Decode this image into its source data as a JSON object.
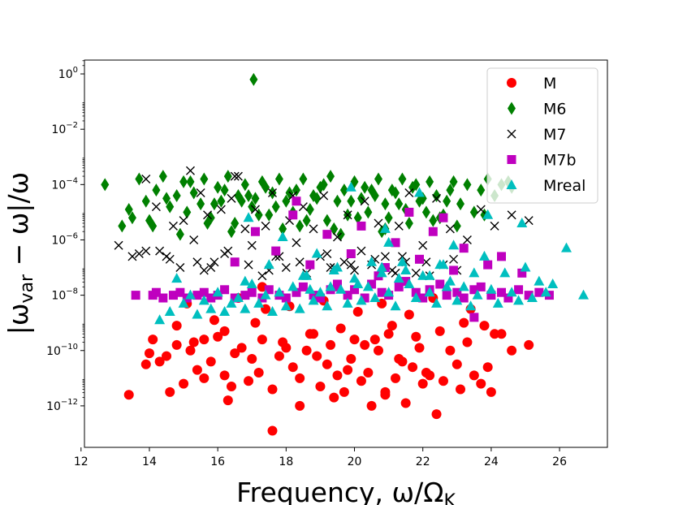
{
  "chart_data": {
    "type": "scatter",
    "title": "",
    "xlabel": "Frequency, ω/Ω",
    "xlabel_sub": "K",
    "ylabel": "|ω",
    "ylabel_sub": "var",
    "ylabel_rest": " − ω|/ω",
    "xlim": [
      12.1,
      27.4
    ],
    "ylim_log10": [
      -13.5,
      0.5
    ],
    "xscale": "linear",
    "yscale": "log",
    "grid": false,
    "legend_position": "upper right",
    "x_ticks": [
      12,
      14,
      16,
      18,
      20,
      22,
      24,
      26
    ],
    "y_ticks": [
      {
        "exp": 0,
        "base": "10",
        "sup": "0"
      },
      {
        "exp": -2,
        "base": "10",
        "sup": "−2"
      },
      {
        "exp": -4,
        "base": "10",
        "sup": "−4"
      },
      {
        "exp": -6,
        "base": "10",
        "sup": "−6"
      },
      {
        "exp": -8,
        "base": "10",
        "sup": "−8"
      },
      {
        "exp": -10,
        "base": "10",
        "sup": "−10"
      },
      {
        "exp": -12,
        "base": "10",
        "sup": "−12"
      }
    ],
    "series": [
      {
        "name": "M",
        "marker": "circle",
        "color": "#ff0000",
        "x": [
          13.4,
          13.9,
          14.0,
          14.1,
          14.3,
          14.5,
          14.6,
          14.8,
          15.0,
          15.2,
          15.3,
          15.4,
          15.6,
          15.8,
          16.0,
          16.2,
          16.4,
          16.5,
          16.7,
          16.9,
          17.0,
          17.2,
          17.3,
          17.6,
          17.8,
          18.0,
          18.2,
          18.4,
          18.6,
          18.8,
          19.0,
          19.2,
          19.3,
          19.5,
          19.7,
          19.9,
          20.0,
          20.2,
          20.4,
          20.5,
          20.7,
          20.9,
          21.0,
          21.2,
          21.4,
          21.5,
          21.7,
          21.9,
          22.0,
          22.2,
          22.4,
          22.6,
          22.8,
          23.0,
          23.1,
          23.3,
          23.5,
          23.7,
          23.9,
          24.0,
          24.3,
          24.6,
          25.1,
          14.8,
          15.6,
          16.2,
          17.1,
          17.9,
          18.7,
          19.6,
          20.3,
          21.1,
          21.8,
          22.5,
          23.2,
          24.1,
          15.1,
          16.6,
          17.4,
          18.1,
          19.1,
          20.1,
          20.8,
          21.6,
          22.3,
          23.4,
          17.6,
          16.3,
          18.4,
          19.4,
          20.9,
          17.3,
          15.9,
          21.3,
          22.1,
          18.9,
          19.8,
          20.6,
          23.8
        ],
        "y": [
          -11.6,
          -10.5,
          -10.1,
          -9.6,
          -10.4,
          -10.2,
          -11.5,
          -9.8,
          -11.2,
          -10.0,
          -9.7,
          -10.7,
          -11.0,
          -10.4,
          -9.5,
          -10.9,
          -11.3,
          -10.1,
          -9.9,
          -11.1,
          -10.3,
          -10.8,
          -9.6,
          -11.4,
          -10.2,
          -9.9,
          -10.6,
          -11.0,
          -10.0,
          -9.4,
          -11.3,
          -10.5,
          -9.8,
          -10.9,
          -11.5,
          -10.3,
          -9.6,
          -11.1,
          -10.8,
          -12.0,
          -10.0,
          -11.6,
          -9.4,
          -11.0,
          -10.4,
          -11.9,
          -10.6,
          -9.9,
          -11.2,
          -10.9,
          -12.3,
          -11.1,
          -10.0,
          -10.5,
          -11.4,
          -9.7,
          -10.9,
          -11.2,
          -10.6,
          -11.5,
          -9.4,
          -10.0,
          -9.8,
          -9.1,
          -9.6,
          -9.3,
          -9.0,
          -9.7,
          -9.4,
          -9.2,
          -9.8,
          -9.1,
          -9.5,
          -9.3,
          -9.0,
          -9.4,
          -8.3,
          -8.1,
          -8.5,
          -8.4,
          -8.2,
          -8.6,
          -8.3,
          -8.7,
          -8.1,
          -8.5,
          -12.9,
          -11.8,
          -12.0,
          -11.7,
          -11.5,
          -7.7,
          -8.9,
          -10.3,
          -10.8,
          -10.2,
          -10.7,
          -9.6,
          -9.1
        ]
      },
      {
        "name": "M6",
        "marker": "diamond",
        "color": "#008000",
        "x": [
          12.7,
          13.2,
          13.4,
          13.7,
          13.9,
          14.0,
          14.2,
          14.4,
          14.6,
          14.8,
          15.0,
          15.1,
          15.3,
          15.5,
          15.6,
          15.8,
          16.0,
          16.1,
          16.3,
          16.5,
          16.6,
          16.8,
          17.0,
          17.1,
          17.3,
          17.5,
          17.6,
          17.8,
          18.0,
          18.2,
          18.3,
          18.5,
          18.7,
          18.8,
          19.0,
          19.2,
          19.3,
          19.5,
          19.7,
          19.8,
          20.0,
          20.2,
          20.4,
          20.5,
          20.7,
          20.9,
          21.0,
          21.2,
          21.4,
          21.5,
          21.7,
          21.9,
          22.1,
          22.2,
          22.4,
          22.6,
          22.8,
          22.9,
          23.1,
          23.3,
          23.5,
          23.7,
          23.9,
          24.1,
          24.3,
          24.5,
          24.6,
          13.5,
          14.1,
          14.9,
          15.7,
          16.4,
          17.2,
          17.9,
          18.6,
          19.4,
          20.1,
          20.8,
          21.6,
          22.3,
          23.0,
          23.8,
          14.5,
          15.9,
          16.9,
          17.7,
          18.9,
          19.9,
          20.6,
          21.3,
          22.0,
          22.7,
          16.2,
          17.4,
          18.1,
          19.1,
          20.3,
          21.1,
          21.8,
          15.2,
          16.7,
          18.4,
          19.6,
          20.9,
          22.5,
          17.05
        ],
        "y": [
          -4.0,
          -5.5,
          -4.9,
          -3.8,
          -4.6,
          -5.3,
          -4.2,
          -3.7,
          -4.8,
          -4.4,
          -3.9,
          -5.0,
          -4.3,
          -4.7,
          -3.8,
          -5.2,
          -4.1,
          -4.6,
          -3.7,
          -5.4,
          -4.4,
          -4.0,
          -4.8,
          -4.5,
          -3.9,
          -5.1,
          -4.3,
          -3.8,
          -4.6,
          -5.0,
          -4.2,
          -3.8,
          -4.9,
          -4.4,
          -4.1,
          -5.3,
          -3.7,
          -4.6,
          -4.2,
          -5.1,
          -3.9,
          -4.5,
          -5.0,
          -4.2,
          -3.8,
          -4.7,
          -5.2,
          -4.3,
          -3.8,
          -4.9,
          -4.1,
          -4.6,
          -5.0,
          -3.9,
          -4.4,
          -5.1,
          -4.2,
          -3.9,
          -4.7,
          -4.0,
          -5.0,
          -4.2,
          -3.8,
          -4.4,
          -4.0,
          -3.9,
          -4.1,
          -5.2,
          -5.5,
          -5.8,
          -5.4,
          -5.7,
          -5.1,
          -5.6,
          -5.3,
          -5.6,
          -5.2,
          -5.7,
          -5.4,
          -5.3,
          -5.5,
          -5.1,
          -4.5,
          -4.7,
          -4.4,
          -4.8,
          -4.5,
          -4.6,
          -4.4,
          -4.7,
          -4.5,
          -4.6,
          -4.2,
          -4.1,
          -4.3,
          -4.0,
          -4.1,
          -4.2,
          -4.0,
          -3.9,
          -4.6,
          -5.5,
          -5.8,
          -5.6,
          -5.2,
          -0.2
        ]
      },
      {
        "name": "M7",
        "marker": "x",
        "color": "#000000",
        "x": [
          13.1,
          13.5,
          13.7,
          13.9,
          14.2,
          14.3,
          14.5,
          14.7,
          14.9,
          15.0,
          15.2,
          15.3,
          15.5,
          15.6,
          15.7,
          15.9,
          16.1,
          16.3,
          16.4,
          16.6,
          16.8,
          17.0,
          17.1,
          17.3,
          17.4,
          17.6,
          17.8,
          18.0,
          18.1,
          18.3,
          18.5,
          18.6,
          18.8,
          19.0,
          19.1,
          19.3,
          19.5,
          19.7,
          19.8,
          20.0,
          20.2,
          20.3,
          20.5,
          20.7,
          20.9,
          21.1,
          21.3,
          21.5,
          21.6,
          21.8,
          22.0,
          22.2,
          22.4,
          22.6,
          22.8,
          23.0,
          23.3,
          23.7,
          24.1,
          24.6,
          25.1,
          13.9,
          14.6,
          15.4,
          16.2,
          16.9,
          17.7,
          18.4,
          19.2,
          19.9,
          20.6,
          21.4,
          22.1,
          22.9,
          15.8,
          17.5,
          19.4,
          21.2,
          16.5,
          18.2
        ],
        "y": [
          -6.2,
          -6.6,
          -6.5,
          -3.8,
          -4.8,
          -6.4,
          -6.6,
          -5.5,
          -7.0,
          -5.3,
          -3.5,
          -6.0,
          -4.3,
          -7.1,
          -5.1,
          -6.8,
          -4.9,
          -6.4,
          -4.5,
          -3.7,
          -5.6,
          -6.2,
          -4.9,
          -7.3,
          -5.5,
          -4.3,
          -6.6,
          -7.0,
          -5.3,
          -6.1,
          -4.8,
          -7.2,
          -5.6,
          -6.6,
          -4.4,
          -7.0,
          -5.9,
          -6.8,
          -5.1,
          -7.1,
          -6.4,
          -4.6,
          -6.9,
          -5.4,
          -6.6,
          -7.1,
          -5.5,
          -6.8,
          -4.3,
          -7.2,
          -6.2,
          -7.3,
          -4.5,
          -6.9,
          -5.6,
          -7.1,
          -6.0,
          -4.9,
          -5.5,
          -5.1,
          -5.3,
          -6.4,
          -6.7,
          -6.8,
          -6.5,
          -6.9,
          -6.6,
          -6.8,
          -6.5,
          -6.9,
          -6.7,
          -6.6,
          -6.8,
          -6.7,
          -7.0,
          -7.1,
          -7.0,
          -7.2,
          -3.7,
          -4.4
        ]
      },
      {
        "name": "M7b",
        "marker": "square",
        "color": "#bf00bf",
        "x": [
          13.6,
          14.1,
          14.2,
          14.4,
          14.7,
          14.9,
          15.1,
          15.4,
          15.6,
          15.8,
          16.0,
          16.2,
          16.5,
          16.8,
          17.0,
          17.3,
          17.5,
          17.8,
          18.0,
          18.3,
          18.5,
          18.8,
          19.0,
          19.3,
          19.5,
          19.8,
          20.0,
          20.3,
          20.5,
          20.8,
          21.0,
          21.3,
          21.5,
          21.8,
          22.0,
          22.2,
          22.5,
          22.7,
          23.0,
          23.2,
          23.5,
          23.7,
          24.0,
          24.3,
          24.5,
          24.8,
          25.1,
          25.4,
          25.7,
          16.5,
          17.7,
          18.7,
          19.9,
          20.9,
          21.9,
          22.9,
          23.9,
          24.9,
          17.1,
          18.2,
          19.2,
          20.2,
          21.2,
          22.3,
          23.2,
          24.3,
          18.3,
          21.6,
          22.6,
          23.5,
          19.5,
          20.7
        ],
        "y": [
          -8.0,
          -8.0,
          -7.9,
          -8.1,
          -8.0,
          -7.9,
          -8.1,
          -8.0,
          -7.9,
          -8.1,
          -8.0,
          -7.8,
          -8.1,
          -8.0,
          -7.9,
          -8.1,
          -7.8,
          -8.0,
          -8.1,
          -7.9,
          -7.7,
          -8.0,
          -8.1,
          -7.8,
          -7.7,
          -8.0,
          -7.8,
          -8.1,
          -7.6,
          -7.9,
          -8.0,
          -7.7,
          -7.5,
          -7.9,
          -8.1,
          -7.8,
          -7.6,
          -8.0,
          -7.9,
          -8.1,
          -7.8,
          -7.7,
          -8.0,
          -7.9,
          -8.1,
          -7.8,
          -8.0,
          -7.9,
          -8.0,
          -6.8,
          -6.4,
          -6.9,
          -6.5,
          -7.0,
          -6.7,
          -7.1,
          -6.9,
          -7.2,
          -5.7,
          -5.1,
          -5.8,
          -5.5,
          -6.1,
          -5.7,
          -6.3,
          -6.6,
          -4.6,
          -5.0,
          -5.2,
          -8.8,
          -7.6,
          -7.3
        ]
      },
      {
        "name": "Mreal",
        "marker": "triangle",
        "color": "#00bfbf",
        "x": [
          14.3,
          14.6,
          14.8,
          15.0,
          15.2,
          15.4,
          15.6,
          15.8,
          16.0,
          16.2,
          16.4,
          16.6,
          16.8,
          17.0,
          17.2,
          17.4,
          17.6,
          17.8,
          18.0,
          18.2,
          18.4,
          18.6,
          18.8,
          19.0,
          19.2,
          19.4,
          19.6,
          19.8,
          20.0,
          20.2,
          20.4,
          20.6,
          20.8,
          21.0,
          21.2,
          21.4,
          21.6,
          21.8,
          22.0,
          22.2,
          22.4,
          22.6,
          22.8,
          23.0,
          23.2,
          23.4,
          23.6,
          23.8,
          24.0,
          24.2,
          24.4,
          24.6,
          24.8,
          25.0,
          25.2,
          25.4,
          25.6,
          25.8,
          26.2,
          26.7,
          16.9,
          17.9,
          18.9,
          19.9,
          20.9,
          21.9,
          22.9,
          23.9,
          24.9,
          17.5,
          18.5,
          19.5,
          20.5,
          21.5,
          22.5,
          23.5,
          16.8,
          18.7,
          20.1,
          21.3,
          22.7,
          19.3,
          20.8,
          22.2,
          21.0
        ],
        "y": [
          -8.9,
          -8.6,
          -7.4,
          -8.3,
          -8.0,
          -8.7,
          -8.2,
          -8.5,
          -7.9,
          -8.6,
          -8.3,
          -8.1,
          -8.5,
          -7.6,
          -8.3,
          -8.0,
          -8.6,
          -7.9,
          -8.4,
          -7.7,
          -8.5,
          -7.3,
          -8.2,
          -7.9,
          -8.4,
          -7.1,
          -7.8,
          -8.3,
          -7.4,
          -8.2,
          -7.7,
          -8.1,
          -7.2,
          -7.9,
          -8.4,
          -6.8,
          -7.6,
          -8.1,
          -7.3,
          -7.9,
          -8.3,
          -6.9,
          -7.5,
          -8.2,
          -7.7,
          -8.4,
          -8.0,
          -6.6,
          -7.8,
          -8.3,
          -7.2,
          -7.9,
          -8.2,
          -7.0,
          -8.1,
          -7.5,
          -7.9,
          -7.6,
          -6.3,
          -8.0,
          -5.2,
          -5.9,
          -6.5,
          -4.1,
          -5.6,
          -4.3,
          -6.2,
          -5.1,
          -5.4,
          -6.9,
          -7.3,
          -7.0,
          -6.8,
          -7.1,
          -6.9,
          -7.2,
          -7.5,
          -7.8,
          -7.6,
          -7.4,
          -7.7,
          -7.7,
          -7.0,
          -7.3,
          -6.1
        ]
      }
    ]
  }
}
